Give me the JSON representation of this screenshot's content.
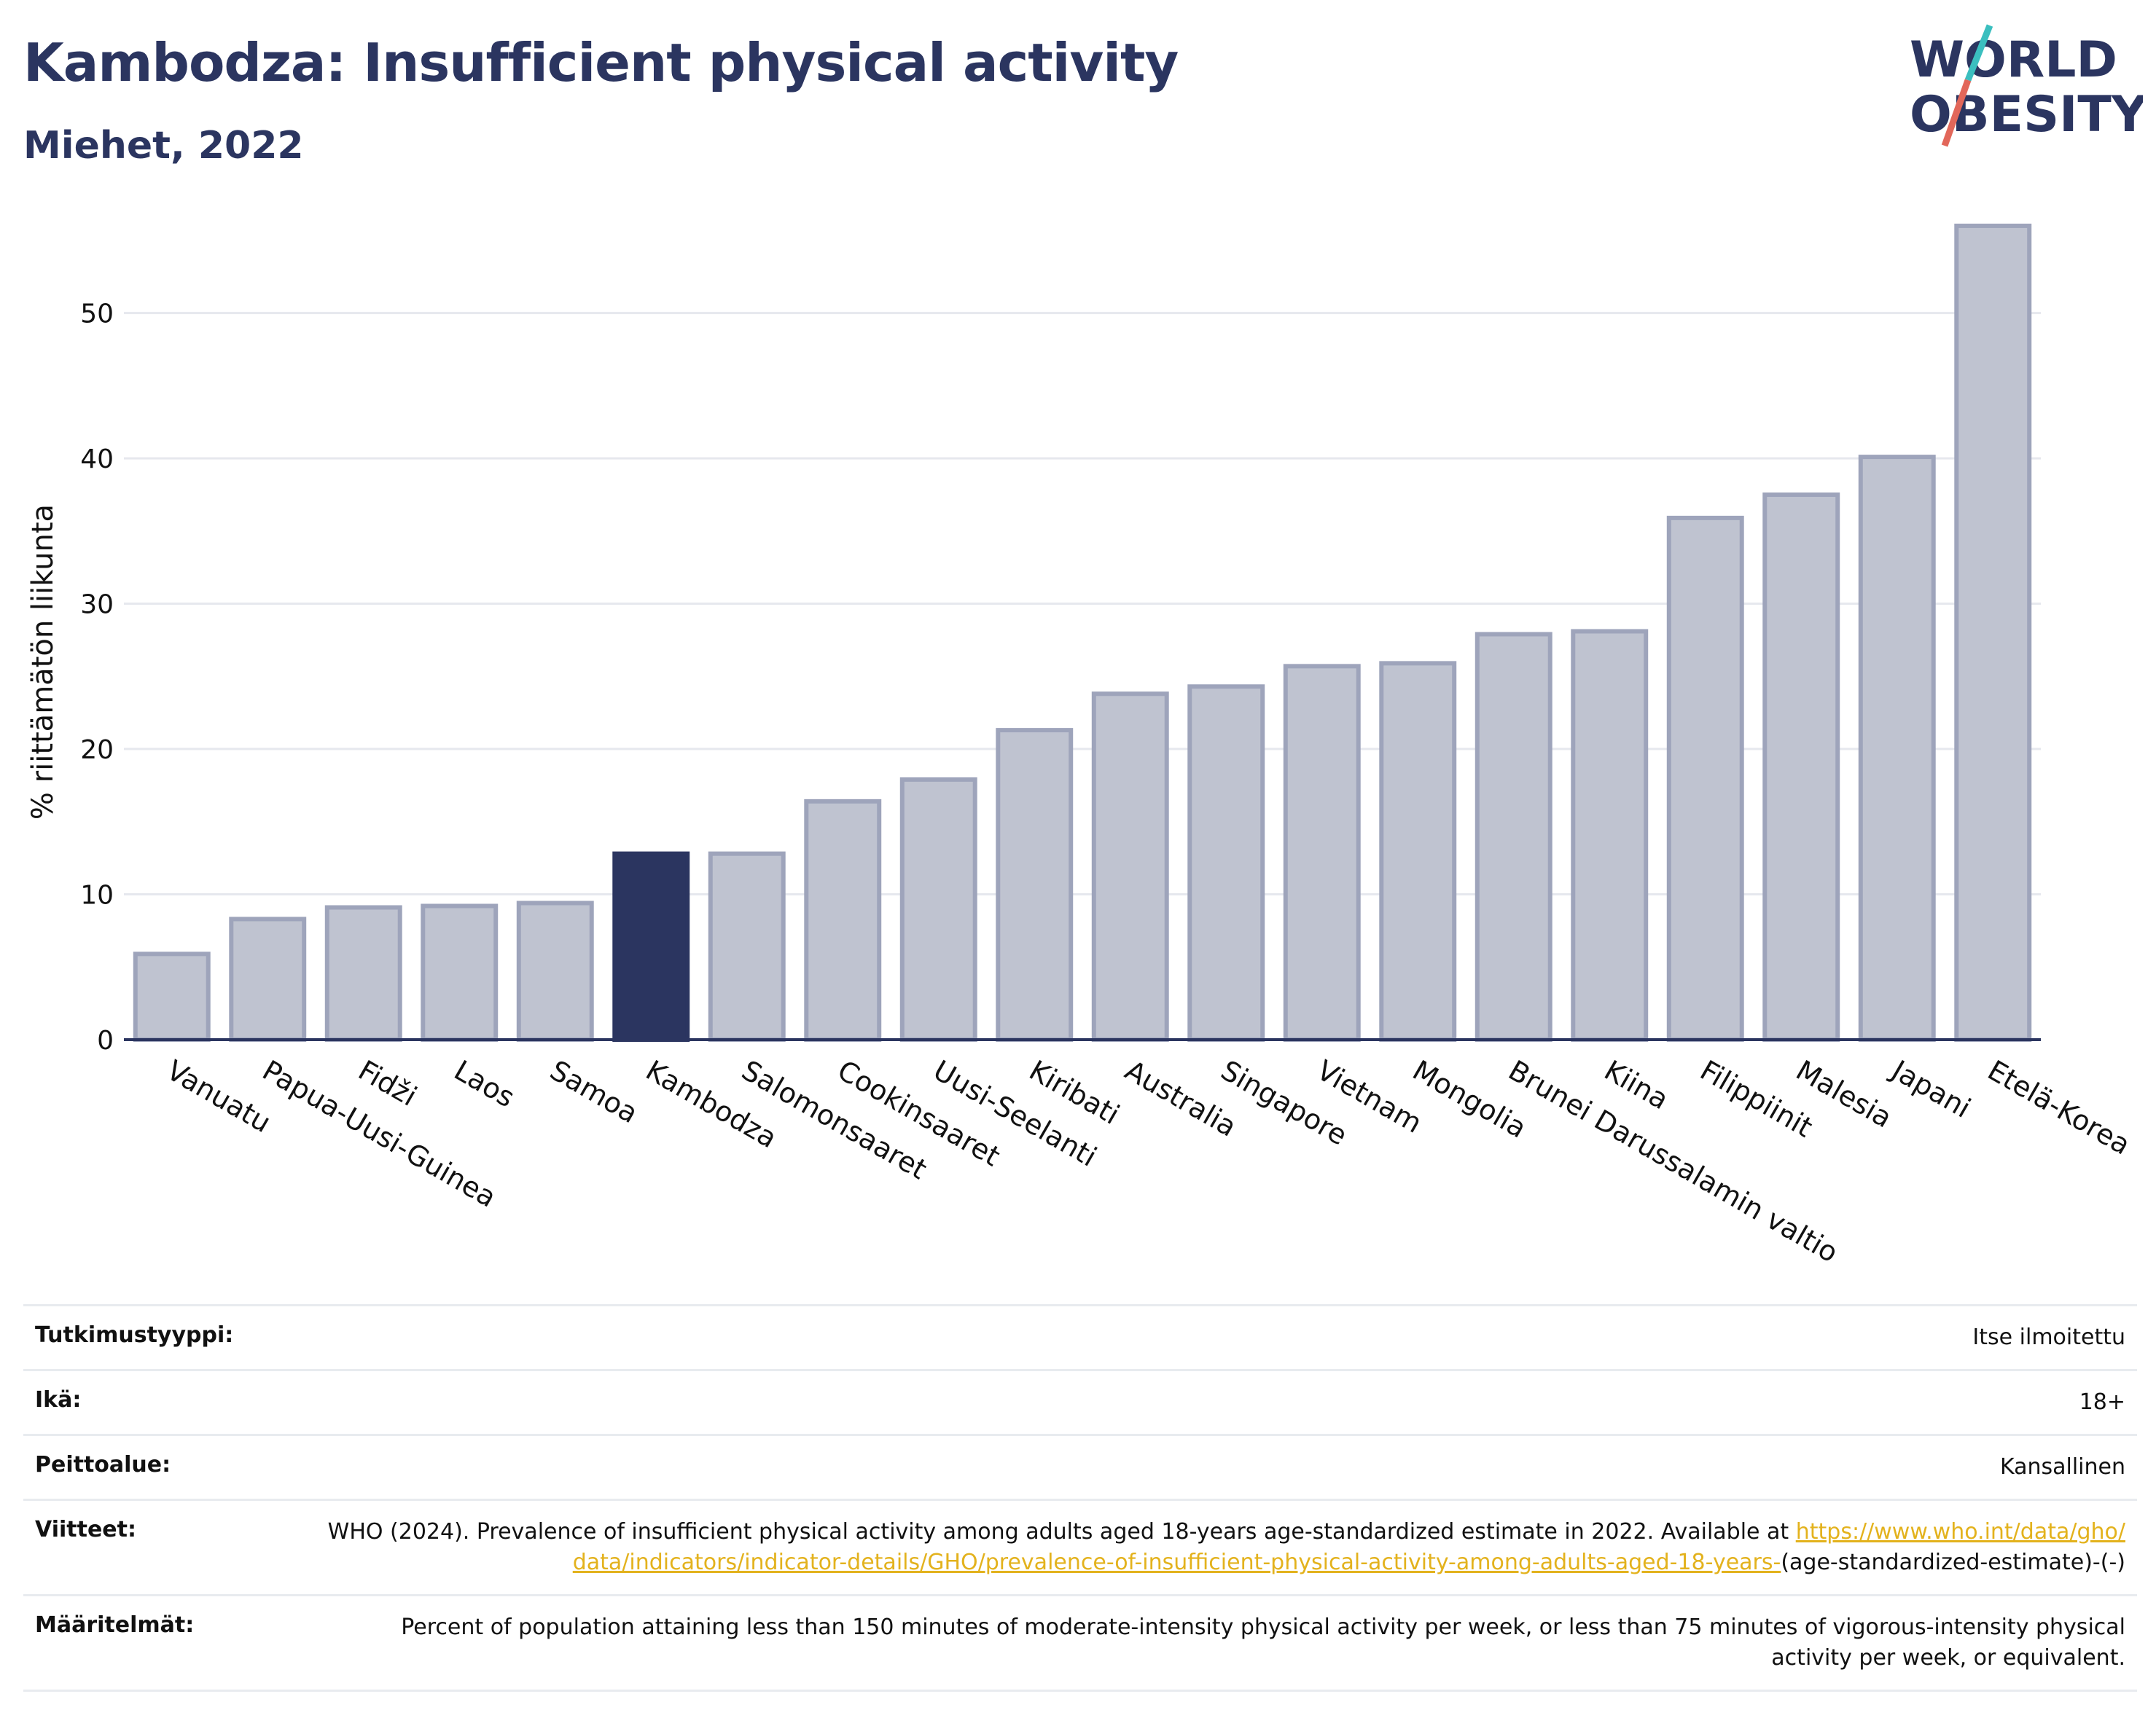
{
  "header": {
    "title": "Kambodza: Insufficient physical activity",
    "subtitle": "Miehet, 2022",
    "logo_line1": "WORLD",
    "logo_line2": "OBESITY"
  },
  "colors": {
    "bar": "#bfc3d0",
    "bar_stroke": "#9ea4bb",
    "highlight": "#2b3560",
    "text": "#2b3560",
    "grid": "#e6e8ee",
    "link": "#e3b21d",
    "logo_teal": "#3bbfbf",
    "logo_red": "#e2675a"
  },
  "chart_data": {
    "type": "bar",
    "title": "Kambodza: Insufficient physical activity",
    "subtitle": "Miehet, 2022",
    "xlabel": "",
    "ylabel": "% riittämätön liikunta",
    "ylim": [
      0,
      57
    ],
    "yticks": [
      0,
      10,
      20,
      30,
      40,
      50
    ],
    "grid": true,
    "highlight": "Kambodza",
    "categories": [
      "Vanuatu",
      "Papua-Uusi-Guinea",
      "Fidži",
      "Laos",
      "Samoa",
      "Kambodza",
      "Salomonsaaret",
      "Cookinsaaret",
      "Uusi-Seelanti",
      "Kiribati",
      "Australia",
      "Singapore",
      "Vietnam",
      "Mongolia",
      "Brunei Darussalamin valtio",
      "Kiina",
      "Filippiinit",
      "Malesia",
      "Japani",
      "Etelä-Korea"
    ],
    "values": [
      5.9,
      8.3,
      9.1,
      9.2,
      9.4,
      12.8,
      12.8,
      16.4,
      17.9,
      21.3,
      23.8,
      24.3,
      25.7,
      25.9,
      27.9,
      28.1,
      35.9,
      37.5,
      40.1,
      56.0
    ]
  },
  "info": {
    "rows": [
      {
        "label": "Tutkimustyyppi:",
        "value": "Itse ilmoitettu"
      },
      {
        "label": "Ikä:",
        "value": "18+"
      },
      {
        "label": "Peittoalue:",
        "value": "Kansallinen"
      },
      {
        "label": "Viitteet:",
        "value": "WHO (2024). Prevalence of insufficient physical activity among adults aged 18-years age-standardized estimate in 2022. Available at",
        "link": "https://www.who.int/data/gho/data/indicators/indicator-details/GHO/prevalence-of-insufficient-physical-activity-among-adults-aged-18-years-",
        "suffix": "(age-standardized-estimate)-(-)"
      },
      {
        "label": "Määritelmät:",
        "value": "Percent of population attaining less than 150 minutes of moderate-intensity physical activity per week, or less than 75 minutes of vigorous-intensity physical activity per week, or equivalent."
      }
    ]
  }
}
